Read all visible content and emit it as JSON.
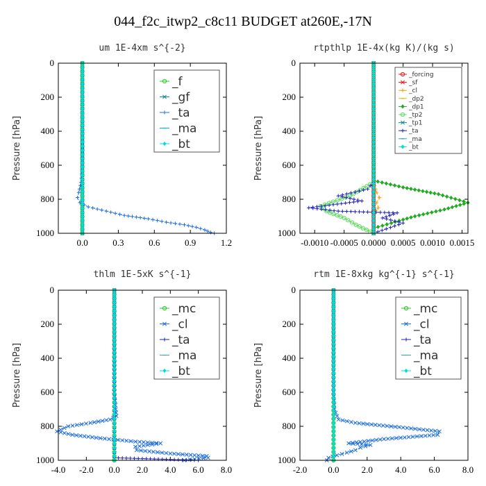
{
  "figure_title": "044_f2c_itwp2_c8c11  BUDGET at260E,-17N",
  "colors": {
    "green": "#22cc22",
    "darkgreen": "#228b22",
    "blue": "#1f6fdf",
    "navy": "#2222bb",
    "cyan": "#00dddd",
    "orange": "#ff9900",
    "red": "#ee1111",
    "gold": "#ddbb00",
    "teal": "#118888"
  },
  "chart_data": [
    {
      "type": "line",
      "title": "um  1E-4xm s^{-2}",
      "ylabel": "Pressure [hPa]",
      "ylim": [
        1000,
        0
      ],
      "xlim": [
        -0.2,
        1.2
      ],
      "x_ticks": [
        0.0,
        0.3,
        0.6,
        0.9,
        1.2
      ],
      "x_tick_labels": [
        "0.0",
        "0.3",
        "0.6",
        "0.9",
        "1.2"
      ],
      "y_ticks": [
        0,
        200,
        400,
        600,
        800,
        1000
      ],
      "y_tick_labels": [
        "0",
        "200",
        "400",
        "600",
        "800",
        "1000"
      ],
      "legend_style": "large",
      "legend": [
        "_f",
        "_gf",
        "_ta",
        "_ma",
        "_bt"
      ],
      "series": [
        {
          "name": "_f",
          "color": "#22cc22",
          "x": [
            0,
            0
          ],
          "y": [
            0,
            1000
          ]
        },
        {
          "name": "_gf",
          "color": "#118888",
          "x": [
            0,
            0
          ],
          "y": [
            0,
            1000
          ]
        },
        {
          "name": "_ta",
          "color": "#1f6fdf",
          "x": [
            0,
            0,
            0,
            0,
            -0.01,
            -0.03,
            -0.04,
            -0.02,
            0.05,
            0.2,
            0.35,
            0.55,
            0.7,
            0.85,
            0.95,
            1.02,
            1.07,
            1.1
          ],
          "y": [
            0,
            200,
            400,
            600,
            700,
            760,
            790,
            820,
            845,
            870,
            895,
            915,
            935,
            950,
            965,
            980,
            995,
            1000
          ]
        },
        {
          "name": "_ma",
          "color": "#00aadd",
          "x": [
            0,
            0
          ],
          "y": [
            0,
            1000
          ]
        },
        {
          "name": "_bt",
          "color": "#00dddd",
          "x": [
            0,
            0
          ],
          "y": [
            0,
            1000
          ]
        }
      ]
    },
    {
      "type": "line",
      "title": "rtpthlp  1E-4x(kg K)/(kg s)",
      "ylabel": "Pressure [hPa]",
      "ylim": [
        1000,
        0
      ],
      "xlim": [
        -0.00125,
        0.0016
      ],
      "x_ticks": [
        -0.001,
        -0.0005,
        0.0,
        0.0005,
        0.001,
        0.0015
      ],
      "x_tick_labels": [
        "-0.0010",
        "-0.0005",
        "0.0000",
        "0.0005",
        "0.0010",
        "0.0015"
      ],
      "y_ticks": [
        0,
        200,
        400,
        600,
        800,
        1000
      ],
      "y_tick_labels": [
        "0",
        "200",
        "400",
        "600",
        "800",
        "1000"
      ],
      "legend_style": "small",
      "legend": [
        "_forcing",
        "_sf",
        "_cl",
        "_dp2",
        "_dp1",
        "_tp2",
        "_tp1",
        "_ta",
        "_ma",
        "_bt"
      ],
      "series": [
        {
          "name": "_forcing",
          "color": "#ee1111",
          "x": [
            0,
            0
          ],
          "y": [
            0,
            1000
          ]
        },
        {
          "name": "_sf",
          "color": "#ee1111",
          "x": [
            0,
            0
          ],
          "y": [
            0,
            1000
          ]
        },
        {
          "name": "_cl",
          "color": "#ff9900",
          "x": [
            0,
            0,
            5e-05,
            0.0001,
            5e-05,
            8e-05,
            0.0,
            0
          ],
          "y": [
            0,
            700,
            760,
            790,
            820,
            850,
            880,
            1000
          ]
        },
        {
          "name": "_dp2",
          "color": "#ddbb00",
          "x": [
            0,
            0
          ],
          "y": [
            0,
            1000
          ]
        },
        {
          "name": "_dp1",
          "color": "#22aa22",
          "x": [
            0,
            0,
            0.0005,
            0.0011,
            0.0016,
            0.0012,
            0.0007,
            0.0003,
            0.0,
            0
          ],
          "y": [
            0,
            690,
            730,
            770,
            820,
            860,
            900,
            940,
            970,
            1000
          ]
        },
        {
          "name": "_tp2",
          "color": "#55dd55",
          "x": [
            0,
            0,
            -0.0004,
            -0.0009,
            -0.0008,
            -0.0005,
            -0.0003,
            0
          ],
          "y": [
            0,
            700,
            780,
            840,
            870,
            910,
            950,
            1000
          ]
        },
        {
          "name": "_tp1",
          "color": "#118888",
          "x": [
            0,
            0
          ],
          "y": [
            0,
            1000
          ]
        },
        {
          "name": "_ta",
          "color": "#2222bb",
          "x": [
            0,
            -0.0001,
            -0.0006,
            -0.0002,
            -0.0011,
            -0.0006,
            0.0004,
            0.00015,
            0.0005,
            0
          ],
          "y": [
            700,
            740,
            780,
            810,
            850,
            870,
            880,
            910,
            940,
            1000
          ]
        },
        {
          "name": "_ma",
          "color": "#3399ee",
          "x": [
            0,
            0
          ],
          "y": [
            0,
            1000
          ]
        },
        {
          "name": "_bt",
          "color": "#00dddd",
          "x": [
            0,
            0
          ],
          "y": [
            0,
            1000
          ]
        }
      ]
    },
    {
      "type": "line",
      "title": "thlm  1E-5xK s^{-1}",
      "ylabel": "Pressure [hPa]",
      "ylim": [
        1000,
        0
      ],
      "xlim": [
        -4.0,
        8.0
      ],
      "x_ticks": [
        -4,
        -2,
        0,
        2,
        4,
        6,
        8
      ],
      "x_tick_labels": [
        "-4.0",
        "-2.0",
        "0.0",
        "2.0",
        "4.0",
        "6.0",
        "8.0"
      ],
      "y_ticks": [
        0,
        200,
        400,
        600,
        800,
        1000
      ],
      "y_tick_labels": [
        "0",
        "200",
        "400",
        "600",
        "800",
        "1000"
      ],
      "legend_style": "large",
      "legend": [
        "_mc",
        "_cl",
        "_ta",
        "_ma",
        "_bt"
      ],
      "series": [
        {
          "name": "_mc",
          "color": "#22cc22",
          "x": [
            0,
            0
          ],
          "y": [
            0,
            1000
          ]
        },
        {
          "name": "_cl",
          "color": "#1f6fdf",
          "x": [
            0,
            0,
            0.1,
            0.15,
            -0.3,
            -1.7,
            -3.3,
            -4.1,
            -3.0,
            -1.0,
            1.5,
            3.3,
            1.5,
            1.6,
            4.0,
            6.6,
            6.7,
            5.4,
            5.0
          ],
          "y": [
            0,
            600,
            700,
            740,
            760,
            780,
            800,
            830,
            850,
            870,
            890,
            900,
            920,
            940,
            960,
            975,
            985,
            995,
            1000
          ]
        },
        {
          "name": "_ta",
          "color": "#2222bb",
          "x": [
            0,
            0,
            2.0,
            4.0,
            6.0
          ],
          "y": [
            0,
            985,
            990,
            995,
            1000
          ]
        },
        {
          "name": "_ma",
          "color": "#3399ee",
          "x": [
            0,
            0
          ],
          "y": [
            0,
            1000
          ]
        },
        {
          "name": "_bt",
          "color": "#00dddd",
          "x": [
            0,
            0
          ],
          "y": [
            0,
            1000
          ]
        }
      ]
    },
    {
      "type": "line",
      "title": "rtm  1E-8xkg kg^{-1} s^{-1}",
      "ylabel": "Pressure [hPa]",
      "ylim": [
        1000,
        0
      ],
      "xlim": [
        -2.0,
        8.0
      ],
      "x_ticks": [
        -2,
        0,
        2,
        4,
        6,
        8
      ],
      "x_tick_labels": [
        "-2.0",
        "0.0",
        "2.0",
        "4.0",
        "6.0",
        "8.0"
      ],
      "y_ticks": [
        0,
        200,
        400,
        600,
        800,
        1000
      ],
      "y_tick_labels": [
        "0",
        "200",
        "400",
        "600",
        "800",
        "1000"
      ],
      "legend_style": "large",
      "legend": [
        "_mc",
        "_cl",
        "_ta",
        "_ma",
        "_bt"
      ],
      "series": [
        {
          "name": "_mc",
          "color": "#22cc22",
          "x": [
            0,
            0
          ],
          "y": [
            0,
            1000
          ]
        },
        {
          "name": "_cl",
          "color": "#1f6fdf",
          "x": [
            0,
            0,
            0.05,
            0.3,
            1.3,
            3.9,
            6.3,
            6.2,
            3.0,
            0.9,
            2.2,
            1.6,
            1.3,
            0.8,
            0.2,
            -0.3,
            -0.4
          ],
          "y": [
            0,
            600,
            700,
            760,
            780,
            805,
            830,
            850,
            875,
            900,
            910,
            925,
            940,
            955,
            970,
            985,
            1000
          ]
        },
        {
          "name": "_ta",
          "color": "#2222bb",
          "x": [
            0,
            0
          ],
          "y": [
            0,
            1000
          ]
        },
        {
          "name": "_ma",
          "color": "#3399ee",
          "x": [
            0,
            0
          ],
          "y": [
            0,
            1000
          ]
        },
        {
          "name": "_bt",
          "color": "#00dddd",
          "x": [
            0,
            0
          ],
          "y": [
            0,
            1000
          ]
        }
      ]
    }
  ]
}
